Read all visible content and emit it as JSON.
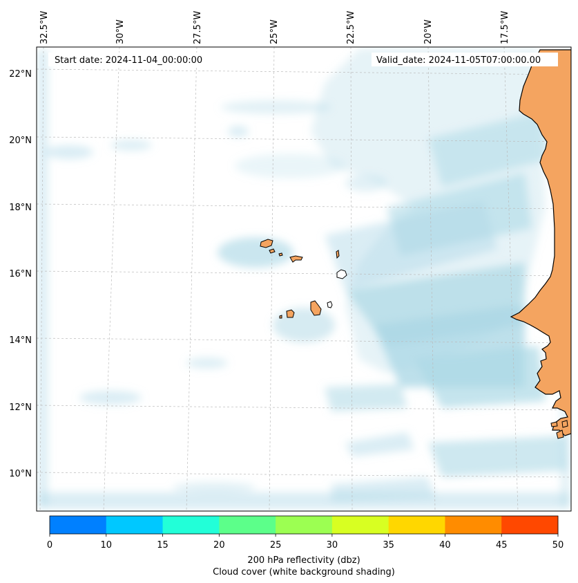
{
  "map": {
    "start_date_label": "Start date: 2024-11-04_00:00:00",
    "valid_date_label": "Valid_date: 2024-11-05T07:00:00.00",
    "lon_labels": [
      "32.5°W",
      "30°W",
      "27.5°W",
      "25°W",
      "22.5°W",
      "20°W",
      "17.5°W"
    ],
    "lat_labels": [
      "22°N",
      "20°N",
      "18°N",
      "16°N",
      "14°N",
      "12°N",
      "10°N"
    ],
    "colors": {
      "land": "#f4a460",
      "cloud": "#add8e6",
      "coast": "#000000",
      "grid": "#bbbbbb"
    }
  },
  "colorbar": {
    "ticks": [
      "0",
      "10",
      "15",
      "20",
      "25",
      "30",
      "35",
      "40",
      "45",
      "50"
    ],
    "colors": [
      "#0080ff",
      "#00c8ff",
      "#22ffd8",
      "#5cff8a",
      "#9cff52",
      "#d8ff22",
      "#ffd700",
      "#ff8c00",
      "#ff4800"
    ],
    "label_line1": "200 hPa reflectivity (dbz)",
    "label_line2": "Cloud cover (white background shading)"
  }
}
